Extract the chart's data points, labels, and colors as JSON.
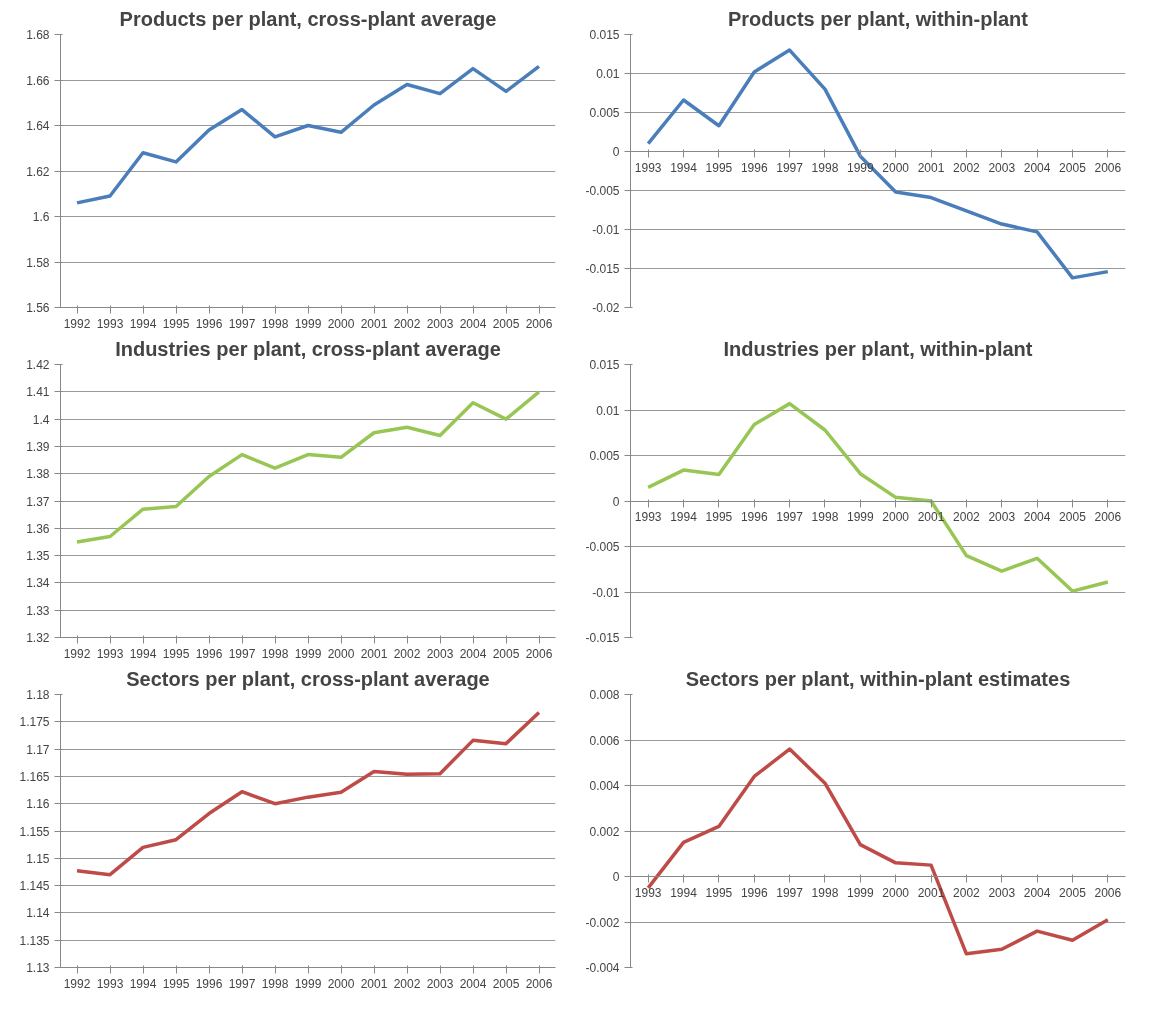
{
  "chart_data": [
    {
      "type": "line",
      "title": "Products per plant, cross-plant average",
      "categories": [
        "1992",
        "1993",
        "1994",
        "1995",
        "1996",
        "1997",
        "1998",
        "1999",
        "2000",
        "2001",
        "2002",
        "2003",
        "2004",
        "2005",
        "2006"
      ],
      "series": [
        {
          "color": "#4a7ebb",
          "values": [
            1.606,
            1.609,
            1.628,
            1.624,
            1.638,
            1.647,
            1.635,
            1.64,
            1.637,
            1.649,
            1.658,
            1.654,
            1.665,
            1.655,
            1.666
          ]
        }
      ],
      "ylim": [
        1.56,
        1.68
      ],
      "yticks": [
        1.56,
        1.58,
        1.6,
        1.62,
        1.64,
        1.66,
        1.68
      ],
      "grid": "y",
      "line_style": "solid"
    },
    {
      "type": "line",
      "title": "Products per plant, within-plant",
      "categories": [
        "1993",
        "1994",
        "1995",
        "1996",
        "1997",
        "1998",
        "1999",
        "2000",
        "2001",
        "2002",
        "2003",
        "2004",
        "2005",
        "2006"
      ],
      "series": [
        {
          "color": "#4a7ebb",
          "values": [
            0.001,
            0.0066,
            0.0033,
            0.0102,
            0.013,
            0.008,
            -0.0006,
            -0.0052,
            -0.0059,
            -0.0076,
            -0.0093,
            -0.0103,
            -0.0162,
            -0.0154
          ]
        }
      ],
      "ylim": [
        -0.02,
        0.015
      ],
      "yticks": [
        -0.02,
        -0.015,
        -0.01,
        -0.005,
        0,
        0.005,
        0.01,
        0.015
      ],
      "grid": "y",
      "line_style": "solid"
    },
    {
      "type": "line",
      "title": "Industries per plant, cross-plant average",
      "categories": [
        "1992",
        "1993",
        "1994",
        "1995",
        "1996",
        "1997",
        "1998",
        "1999",
        "2000",
        "2001",
        "2002",
        "2003",
        "2004",
        "2005",
        "2006"
      ],
      "series": [
        {
          "color": "#98c654",
          "values": [
            1.355,
            1.357,
            1.367,
            1.368,
            1.379,
            1.387,
            1.382,
            1.387,
            1.386,
            1.395,
            1.397,
            1.394,
            1.406,
            1.4,
            1.41
          ]
        }
      ],
      "ylim": [
        1.32,
        1.42
      ],
      "yticks": [
        1.32,
        1.33,
        1.34,
        1.35,
        1.36,
        1.37,
        1.38,
        1.39,
        1.4,
        1.41,
        1.42
      ],
      "grid": "y",
      "line_style": "solid"
    },
    {
      "type": "line",
      "title": "Industries per plant, within-plant",
      "categories": [
        "1993",
        "1994",
        "1995",
        "1996",
        "1997",
        "1998",
        "1999",
        "2000",
        "2001",
        "2002",
        "2003",
        "2004",
        "2005",
        "2006"
      ],
      "series": [
        {
          "color": "#98c654",
          "values": [
            0.0015,
            0.0034,
            0.0029,
            0.0084,
            0.0107,
            0.0078,
            0.003,
            0.0004,
            0.0,
            -0.006,
            -0.0077,
            -0.0063,
            -0.0099,
            -0.0089
          ]
        }
      ],
      "ylim": [
        -0.015,
        0.015
      ],
      "yticks": [
        -0.015,
        -0.01,
        -0.005,
        0,
        0.005,
        0.01,
        0.015
      ],
      "grid": "y",
      "line_style": "solid"
    },
    {
      "type": "line",
      "title": "Sectors per plant, cross-plant average",
      "categories": [
        "1992",
        "1993",
        "1994",
        "1995",
        "1996",
        "1997",
        "1998",
        "1999",
        "2000",
        "2001",
        "2002",
        "2003",
        "2004",
        "2005",
        "2006"
      ],
      "series": [
        {
          "color": "#be4b48",
          "values": [
            1.1477,
            1.147,
            1.152,
            1.1534,
            1.1582,
            1.1622,
            1.16,
            1.1612,
            1.1621,
            1.1659,
            1.1654,
            1.1655,
            1.1716,
            1.171,
            1.1767
          ]
        }
      ],
      "ylim": [
        1.13,
        1.18
      ],
      "yticks": [
        1.13,
        1.135,
        1.14,
        1.145,
        1.15,
        1.155,
        1.16,
        1.165,
        1.17,
        1.175,
        1.18
      ],
      "grid": "y",
      "line_style": "solid"
    },
    {
      "type": "line",
      "title": "Sectors per plant, within-plant estimates",
      "categories": [
        "1993",
        "1994",
        "1995",
        "1996",
        "1997",
        "1998",
        "1999",
        "2000",
        "2001",
        "2002",
        "2003",
        "2004",
        "2005",
        "2006"
      ],
      "series": [
        {
          "color": "#be4b48",
          "values": [
            -0.0005,
            0.0015,
            0.0022,
            0.0044,
            0.0056,
            0.0041,
            0.0014,
            0.0006,
            0.0005,
            -0.0034,
            -0.0032,
            -0.0024,
            -0.0028,
            -0.0019
          ]
        }
      ],
      "ylim": [
        -0.004,
        0.008
      ],
      "yticks": [
        -0.004,
        -0.002,
        0,
        0.002,
        0.004,
        0.006,
        0.008
      ],
      "grid": "y",
      "line_style": "solid"
    }
  ]
}
